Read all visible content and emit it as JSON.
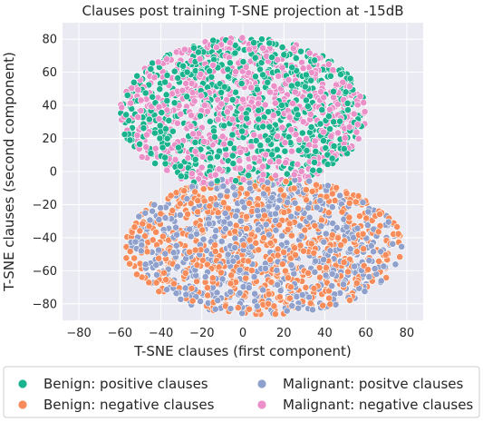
{
  "chart_data": {
    "type": "scatter",
    "title": "Clauses post training T-SNE projection at -15dB",
    "xlabel": "T-SNE clauses (first component)",
    "ylabel": "T-SNE clauses (second component)",
    "xlim": [
      -88,
      88
    ],
    "ylim": [
      -90,
      90
    ],
    "xticks": [
      -80,
      -60,
      -40,
      -20,
      0,
      20,
      40,
      60,
      80
    ],
    "yticks": [
      -80,
      -60,
      -40,
      -20,
      0,
      20,
      40,
      60,
      80
    ],
    "grid": true,
    "legend_position": "bottom",
    "series": [
      {
        "name": "Benign: positive clauses",
        "color": "#1bb38e",
        "region": {
          "cx": 0,
          "cy": 35,
          "rx": 60,
          "ry": 46,
          "y_min": -8
        }
      },
      {
        "name": "Benign: negative clauses",
        "color": "#f78c5a",
        "region": {
          "cx": 10,
          "cy": -45,
          "rx": 68,
          "ry": 42,
          "y_max": 12
        }
      },
      {
        "name": "Malignant: positve clauses",
        "color": "#8ea0cb",
        "region": {
          "cx": 10,
          "cy": -45,
          "rx": 68,
          "ry": 42,
          "y_max": 12
        }
      },
      {
        "name": "Malignant: negative clauses",
        "color": "#ea8fc7",
        "region": {
          "cx": 0,
          "cy": 35,
          "rx": 60,
          "ry": 46,
          "y_min": -8
        }
      }
    ]
  }
}
